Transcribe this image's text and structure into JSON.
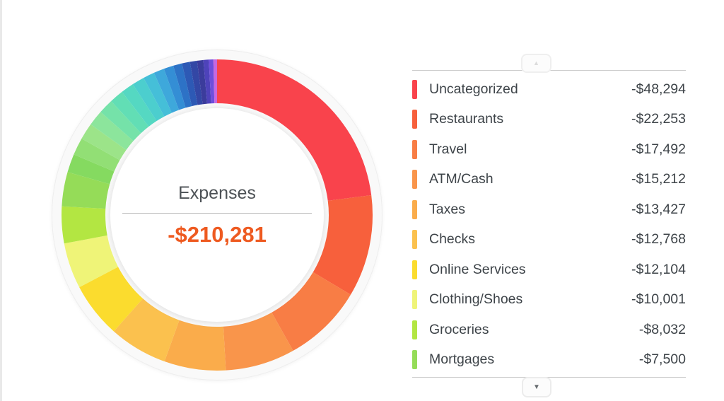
{
  "page": {
    "background": "#ffffff",
    "left_border_color": "#e9e9e9"
  },
  "chart_data": {
    "type": "pie",
    "variant": "donut",
    "title": "Expenses",
    "total": 210281,
    "total_display": "-$210,281",
    "total_color": "#ee5a20",
    "start_angle_deg": 0,
    "direction": "clockwise",
    "legend_position": "right",
    "segments": [
      {
        "label": "Uncategorized",
        "value": 48294,
        "display": "-$48,294",
        "color": "#F9434C"
      },
      {
        "label": "Restaurants",
        "value": 22253,
        "display": "-$22,253",
        "color": "#F7603C"
      },
      {
        "label": "Travel",
        "value": 17492,
        "display": "-$17,492",
        "color": "#F87D45"
      },
      {
        "label": "ATM/Cash",
        "value": 15212,
        "display": "-$15,212",
        "color": "#F9954B"
      },
      {
        "label": "Taxes",
        "value": 13427,
        "display": "-$13,427",
        "color": "#FAAC4B"
      },
      {
        "label": "Checks",
        "value": 12768,
        "display": "-$12,768",
        "color": "#FBC14E"
      },
      {
        "label": "Online Services",
        "value": 12104,
        "display": "-$12,104",
        "color": "#FBDC2E"
      },
      {
        "label": "Clothing/Shoes",
        "value": 10001,
        "display": "-$10,001",
        "color": "#EFF478"
      },
      {
        "label": "Groceries",
        "value": 8032,
        "display": "-$8,032",
        "color": "#B3E642"
      },
      {
        "label": "Mortgages",
        "value": 7500,
        "display": "-$7,500",
        "color": "#95DC58"
      }
    ],
    "unlabeled_segments_estimated": [
      {
        "value": 4000,
        "color": "#85DA60"
      },
      {
        "value": 3812,
        "color": "#92DF75"
      },
      {
        "value": 3624,
        "color": "#9CE489"
      },
      {
        "value": 3435,
        "color": "#8CE59C"
      },
      {
        "value": 3247,
        "color": "#75E2A9"
      },
      {
        "value": 3059,
        "color": "#62DEB5"
      },
      {
        "value": 2871,
        "color": "#55D8C2"
      },
      {
        "value": 2682,
        "color": "#4CCECE"
      },
      {
        "value": 2494,
        "color": "#45BFD8"
      },
      {
        "value": 2306,
        "color": "#3EA8DB"
      },
      {
        "value": 2118,
        "color": "#348ED5"
      },
      {
        "value": 1929,
        "color": "#2D72C6"
      },
      {
        "value": 1741,
        "color": "#2D59B5"
      },
      {
        "value": 1553,
        "color": "#3347A5"
      },
      {
        "value": 1365,
        "color": "#3B3C9C"
      },
      {
        "value": 1176,
        "color": "#4E43BA"
      },
      {
        "value": 988,
        "color": "#6F4EDC"
      },
      {
        "value": 798,
        "color": "#C767E1"
      }
    ]
  },
  "legend": {
    "scroll_up_icon": "▲",
    "scroll_down_icon": "▼"
  }
}
